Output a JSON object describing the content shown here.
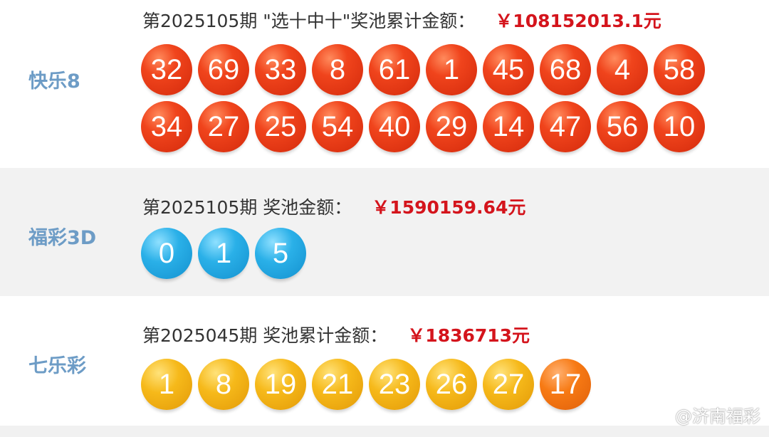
{
  "kl8": {
    "label": "快乐8",
    "header": "第2025105期 \"选十中十\"奖池累计金额：",
    "amount": "￥108152013.1元",
    "row1": [
      "32",
      "69",
      "33",
      "8",
      "61",
      "1",
      "45",
      "68",
      "4",
      "58"
    ],
    "row2": [
      "34",
      "27",
      "25",
      "54",
      "40",
      "29",
      "14",
      "47",
      "56",
      "10"
    ]
  },
  "fc3d": {
    "label": "福彩3D",
    "header": "第2025105期 奖池金额：",
    "amount": "￥1590159.64元",
    "balls": [
      "0",
      "1",
      "5"
    ]
  },
  "qlc": {
    "label": "七乐彩",
    "header": "第2025045期 奖池累计金额：",
    "amount": "￥1836713元",
    "balls": [
      "1",
      "8",
      "19",
      "21",
      "23",
      "26",
      "27"
    ],
    "special": "17"
  },
  "watermark": "@济南福彩",
  "colors": {
    "red": "#e8401a",
    "blue": "#22a8e4",
    "yellow": "#f4b416",
    "orange": "#f5760f",
    "amount": "#d4141c",
    "label": "#6d9cc6"
  }
}
